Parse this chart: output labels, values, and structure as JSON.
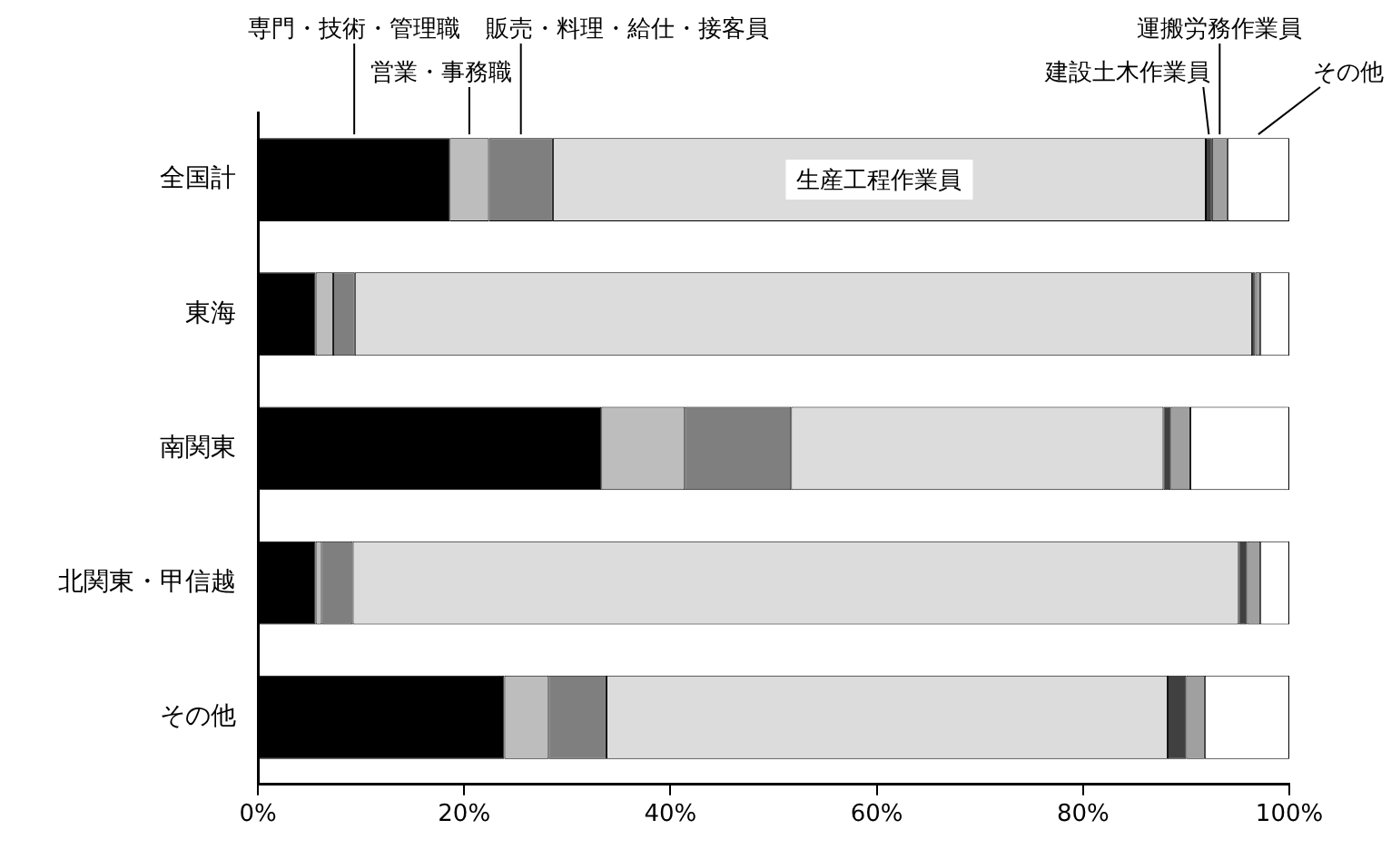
{
  "chart_data": {
    "type": "bar",
    "orientation": "horizontal",
    "stacked": true,
    "categories": [
      "全国計",
      "東海",
      "南関東",
      "北関東・甲信越",
      "その他"
    ],
    "series": [
      {
        "name": "専門・技術・管理職",
        "color": "#000000",
        "values": [
          18.6,
          5.6,
          33.3,
          5.6,
          23.9
        ]
      },
      {
        "name": "営業・事務職",
        "color": "#bdbdbd",
        "values": [
          3.8,
          1.7,
          8.1,
          0.6,
          4.3
        ]
      },
      {
        "name": "販売・料理・給仕・接客員",
        "color": "#7f7f7f",
        "values": [
          6.2,
          2.1,
          10.3,
          3.0,
          5.6
        ]
      },
      {
        "name": "生産工程作業員",
        "color": "#dcdcdc",
        "values": [
          63.3,
          87.0,
          36.1,
          85.9,
          54.4
        ]
      },
      {
        "name": "建設土木作業員",
        "color": "#404040",
        "values": [
          0.6,
          0.3,
          0.7,
          0.8,
          1.8
        ]
      },
      {
        "name": "運搬労務作業員",
        "color": "#a0a0a0",
        "values": [
          1.5,
          0.5,
          1.9,
          1.3,
          1.8
        ]
      },
      {
        "name": "その他",
        "color": "#ffffff",
        "values": [
          6.0,
          2.8,
          9.6,
          2.8,
          8.2
        ]
      }
    ],
    "xlim": [
      0,
      100
    ],
    "xticks": [
      {
        "value": 0,
        "label": "0%"
      },
      {
        "value": 20,
        "label": "20%"
      },
      {
        "value": 40,
        "label": "40%"
      },
      {
        "value": 60,
        "label": "60%"
      },
      {
        "value": 80,
        "label": "80%"
      },
      {
        "value": 100,
        "label": "100%"
      }
    ],
    "grid": false,
    "legend": false
  }
}
